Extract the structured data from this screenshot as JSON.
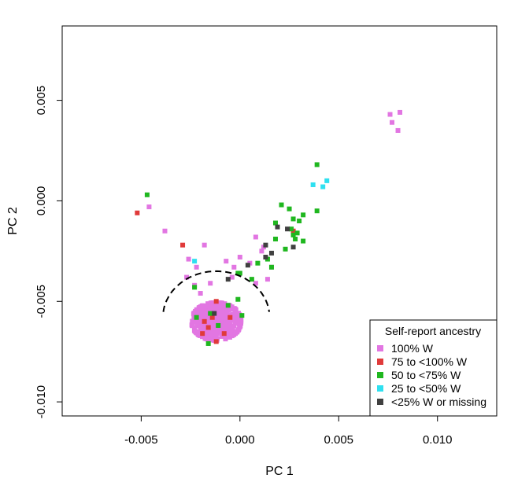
{
  "chart_data": {
    "type": "scatter",
    "title": "",
    "xlabel": "PC 1",
    "ylabel": "PC 2",
    "xlim": [
      -0.009,
      0.013
    ],
    "ylim": [
      -0.0107,
      0.0087
    ],
    "xticks": [
      {
        "value": -0.005,
        "label": "-0.005"
      },
      {
        "value": 0.0,
        "label": "0.000"
      },
      {
        "value": 0.005,
        "label": "0.005"
      },
      {
        "value": 0.01,
        "label": "0.010"
      }
    ],
    "yticks": [
      {
        "value": -0.01,
        "label": "-0.010"
      },
      {
        "value": -0.005,
        "label": "-0.005"
      },
      {
        "value": 0.0,
        "label": "0.000"
      },
      {
        "value": 0.005,
        "label": "0.005"
      }
    ],
    "grid": false,
    "legend": {
      "title": "Self-report ancestry",
      "placement": "bottom-right"
    },
    "annotation": {
      "type": "dashed-arc",
      "center": [
        -0.0012,
        -0.0058
      ],
      "radius_x": 0.0027,
      "radius_y": 0.0023
    },
    "series": [
      {
        "name": "100% W",
        "color": "#e276e2",
        "cluster": {
          "center": [
            -0.0012,
            -0.006
          ],
          "spread": [
            0.0012,
            0.0009
          ],
          "count": 450,
          "seed": 7
        },
        "points": [
          [
            0.0076,
            0.0043
          ],
          [
            0.0081,
            0.0044
          ],
          [
            0.0077,
            0.0039
          ],
          [
            0.008,
            0.0035
          ],
          [
            -0.0046,
            -0.0003
          ],
          [
            -0.0038,
            -0.0015
          ],
          [
            -0.0026,
            -0.0029
          ],
          [
            -0.0018,
            -0.0022
          ],
          [
            -0.0022,
            -0.0033
          ],
          [
            -0.0007,
            -0.003
          ],
          [
            0.0005,
            -0.0031
          ],
          [
            0.0008,
            -0.0018
          ],
          [
            0.0011,
            -0.0025
          ],
          [
            -0.0015,
            -0.0041
          ],
          [
            -0.0027,
            -0.0038
          ],
          [
            -0.0023,
            -0.0042
          ],
          [
            -0.0003,
            -0.0033
          ],
          [
            0.0016,
            -0.0033
          ],
          [
            0.0014,
            -0.0039
          ],
          [
            0.0008,
            -0.0041
          ],
          [
            0.0,
            -0.0028
          ],
          [
            -0.0004,
            -0.0038
          ],
          [
            -0.002,
            -0.0046
          ],
          [
            0.0012,
            -0.0023
          ]
        ]
      },
      {
        "name": "75 to <100% W",
        "color": "#e03a3a",
        "points": [
          [
            -0.0052,
            -0.0006
          ],
          [
            -0.0029,
            -0.0022
          ],
          [
            -0.0012,
            -0.005
          ],
          [
            -0.0014,
            -0.0058
          ],
          [
            -0.0018,
            -0.006
          ],
          [
            -0.0008,
            -0.0066
          ],
          [
            -0.0012,
            -0.007
          ],
          [
            -0.0016,
            -0.0063
          ],
          [
            -0.0005,
            -0.0058
          ],
          [
            0.0027,
            -0.0015
          ],
          [
            -0.0019,
            -0.0066
          ]
        ]
      },
      {
        "name": "50 to <75% W",
        "color": "#1fb71f",
        "points": [
          [
            -0.0047,
            0.0003
          ],
          [
            -0.0023,
            -0.0043
          ],
          [
            -0.0001,
            -0.0036
          ],
          [
            0.0006,
            -0.0039
          ],
          [
            0.0009,
            -0.0031
          ],
          [
            0.0014,
            -0.0029
          ],
          [
            0.0016,
            -0.0033
          ],
          [
            0.0018,
            -0.0011
          ],
          [
            0.0018,
            -0.0019
          ],
          [
            0.0021,
            -0.0002
          ],
          [
            0.0023,
            -0.0024
          ],
          [
            0.0025,
            -0.0004
          ],
          [
            0.0026,
            -0.0014
          ],
          [
            0.0027,
            -0.0017
          ],
          [
            0.0028,
            -0.0019
          ],
          [
            0.003,
            -0.001
          ],
          [
            0.0032,
            -0.0007
          ],
          [
            0.0032,
            -0.002
          ],
          [
            0.0039,
            0.0018
          ],
          [
            0.0039,
            -0.0005
          ],
          [
            0.0001,
            -0.0057
          ],
          [
            -0.0001,
            -0.0049
          ],
          [
            -0.0022,
            -0.0058
          ],
          [
            -0.0016,
            -0.0071
          ],
          [
            0.0,
            -0.0036
          ],
          [
            -0.0006,
            -0.0052
          ],
          [
            -0.0011,
            -0.0062
          ],
          [
            -0.0015,
            -0.0056
          ],
          [
            0.0027,
            -0.0009
          ],
          [
            0.0029,
            -0.0016
          ]
        ]
      },
      {
        "name": "25 to <50% W",
        "color": "#2fe0f0",
        "points": [
          [
            -0.0023,
            -0.003
          ],
          [
            0.0037,
            0.0008
          ],
          [
            0.0042,
            0.0007
          ],
          [
            0.0044,
            0.001
          ]
        ]
      },
      {
        "name": "<25% W or missing",
        "color": "#404040",
        "points": [
          [
            -0.0006,
            -0.0039
          ],
          [
            0.0004,
            -0.0032
          ],
          [
            0.0013,
            -0.0022
          ],
          [
            0.0016,
            -0.0026
          ],
          [
            0.0019,
            -0.0013
          ],
          [
            0.0024,
            -0.0014
          ],
          [
            0.0027,
            -0.0023
          ],
          [
            0.0013,
            -0.0028
          ],
          [
            -0.0013,
            -0.0056
          ]
        ]
      }
    ]
  }
}
